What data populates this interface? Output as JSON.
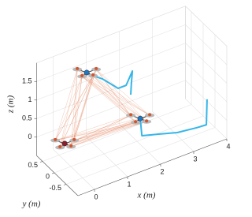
{
  "chart_data": {
    "type": "line3d",
    "xlabel": "x (m)",
    "ylabel": "y (m)",
    "zlabel": "z (m)",
    "xlim": [
      -0.5,
      4
    ],
    "ylim": [
      -1,
      0.75
    ],
    "zlim": [
      -0.5,
      2
    ],
    "xticks": [
      0,
      1,
      2,
      3,
      4
    ],
    "yticks": [
      -0.5,
      0,
      0.5
    ],
    "zticks": [
      0,
      0.5,
      1,
      1.5
    ],
    "grid": true,
    "series": [
      {
        "color": "#35b6e8",
        "x": [
          0.52,
          0.95,
          1.43,
          1.67,
          1.86,
          1.83,
          1.81
        ],
        "y": [
          0,
          0,
          0,
          0,
          0,
          0,
          0
        ],
        "z": [
          1.82,
          1.54,
          1.12,
          1.12,
          1.44,
          1.13,
          0.82
        ]
      },
      {
        "color": "#35b6e8",
        "x": [
          1.74,
          1.79,
          2.26,
          2.86,
          3.45,
          3.74,
          3.76
        ],
        "y": [
          -0.5,
          -0.5,
          -0.5,
          -0.5,
          -0.5,
          -0.5,
          -0.5
        ],
        "z": [
          0.51,
          0.03,
          -0.09,
          -0.25,
          -0.32,
          -0.34,
          0.34
        ]
      }
    ],
    "drones": {
      "x": [
        0.48,
        -0.4,
        1.74
      ],
      "y": [
        0,
        -0.3,
        -0.5
      ],
      "z": [
        1.87,
        0.44,
        0.51
      ],
      "colors": [
        "#1f77c4",
        "#8c1c2e",
        "#1f77c4"
      ]
    },
    "link_color": "#e07a50"
  }
}
